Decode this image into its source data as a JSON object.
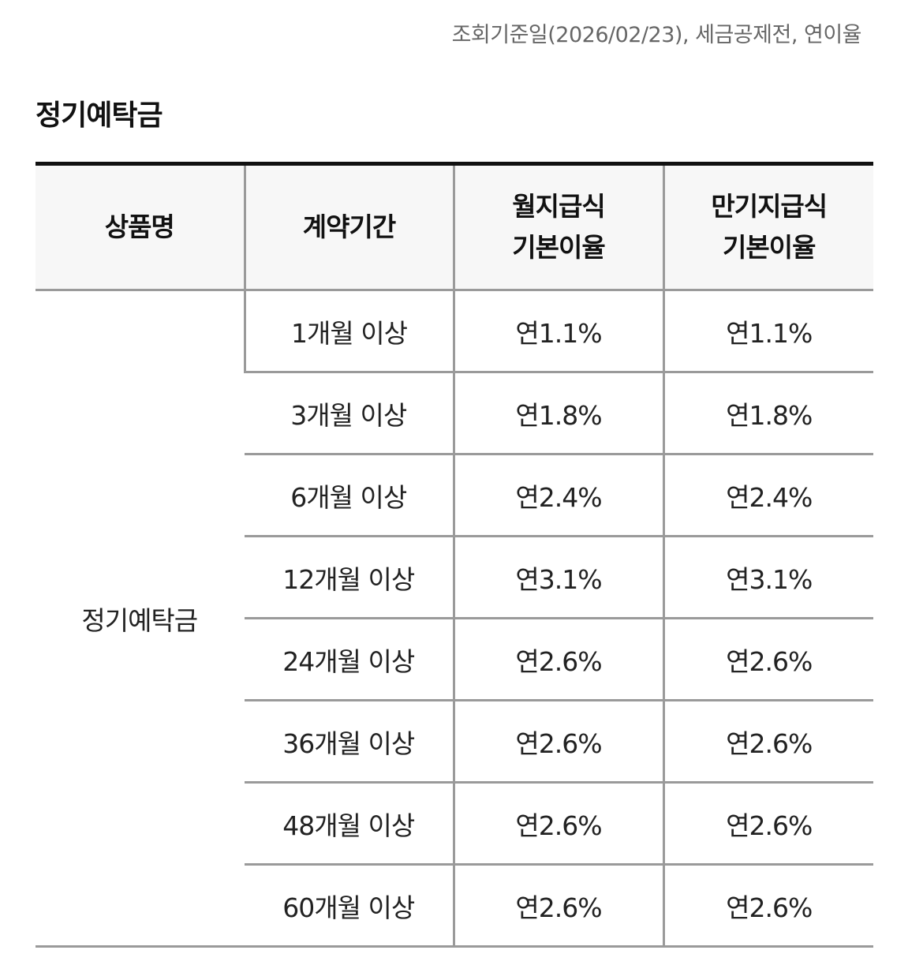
{
  "header_note": "조회기준일(2026/02/23), 세금공제전, 연이율",
  "section_title": "정기예탁금",
  "table": {
    "headers": [
      "상품명",
      "계약기간",
      "월지급식 기본이율",
      "만기지급식 기본이율"
    ],
    "product_name": "정기예탁금",
    "rows": [
      {
        "period": "1개월 이상",
        "monthly_rate": "연1.1%",
        "maturity_rate": "연1.1%"
      },
      {
        "period": "3개월 이상",
        "monthly_rate": "연1.8%",
        "maturity_rate": "연1.8%"
      },
      {
        "period": "6개월 이상",
        "monthly_rate": "연2.4%",
        "maturity_rate": "연2.4%"
      },
      {
        "period": "12개월 이상",
        "monthly_rate": "연3.1%",
        "maturity_rate": "연3.1%"
      },
      {
        "period": "24개월 이상",
        "monthly_rate": "연2.6%",
        "maturity_rate": "연2.6%"
      },
      {
        "period": "36개월 이상",
        "monthly_rate": "연2.6%",
        "maturity_rate": "연2.6%"
      },
      {
        "period": "48개월 이상",
        "monthly_rate": "연2.6%",
        "maturity_rate": "연2.6%"
      },
      {
        "period": "60개월 이상",
        "monthly_rate": "연2.6%",
        "maturity_rate": "연2.6%"
      }
    ]
  }
}
